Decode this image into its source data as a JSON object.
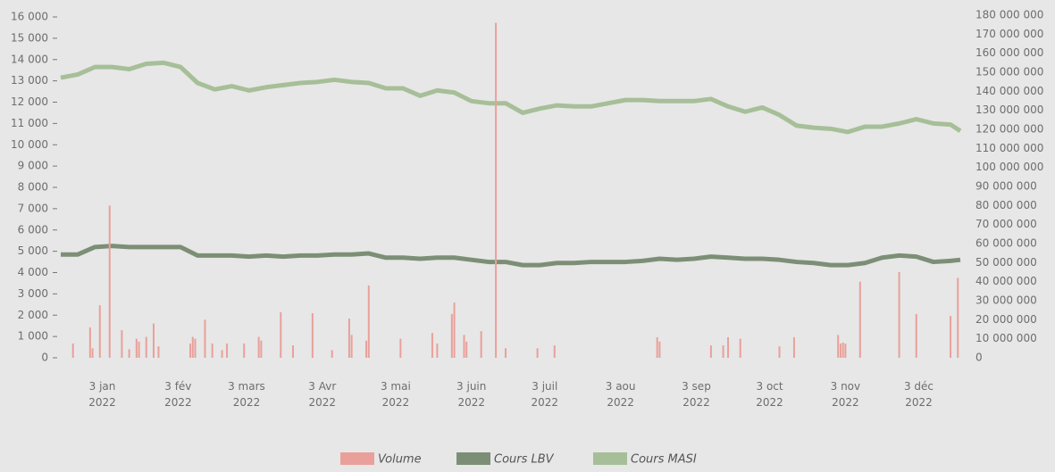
{
  "chart_data": {
    "type": "combo",
    "xlim": [
      "2021-12-17",
      "2022-12-20"
    ],
    "xticks": [
      {
        "value": "2022-01-03",
        "label": "3 jan 2022"
      },
      {
        "value": "2022-02-03",
        "label": "3 fév 2022"
      },
      {
        "value": "2022-03-03",
        "label": "3 mars 2022"
      },
      {
        "value": "2022-04-03",
        "label": "3 Avr 2022"
      },
      {
        "value": "2022-05-03",
        "label": "3 mai 2022"
      },
      {
        "value": "2022-06-03",
        "label": "3 juin 2022"
      },
      {
        "value": "2022-07-03",
        "label": "3 juil 2022"
      },
      {
        "value": "2022-08-03",
        "label": "3 aou 2022"
      },
      {
        "value": "2022-09-03",
        "label": "3 sep 2022"
      },
      {
        "value": "2022-10-03",
        "label": "3 oct 2022"
      },
      {
        "value": "2022-11-03",
        "label": "3 nov 2022"
      },
      {
        "value": "2022-12-03",
        "label": "3 déc 2022"
      }
    ],
    "ylim": [
      0,
      16000
    ],
    "yticks": [
      0,
      {
        "value": 1000,
        "label": "1 000"
      },
      {
        "value": 2000,
        "label": "2 000"
      },
      {
        "value": 3000,
        "label": "3 000"
      },
      {
        "value": 4000,
        "label": "4 000"
      },
      {
        "value": 5000,
        "label": "5 000"
      },
      {
        "value": 6000,
        "label": "6 000"
      },
      {
        "value": 7000,
        "label": "7 000"
      },
      {
        "value": 8000,
        "label": "8 000"
      },
      {
        "value": 9000,
        "label": "9 000"
      },
      {
        "value": 10000,
        "label": "10 000"
      },
      {
        "value": 11000,
        "label": "11 000"
      },
      {
        "value": 12000,
        "label": "12 000"
      },
      {
        "value": 13000,
        "label": "13 000"
      },
      {
        "value": 14000,
        "label": "14 000"
      },
      {
        "value": 15000,
        "label": "15 000"
      },
      {
        "value": 16000,
        "label": "16 000"
      }
    ],
    "y2lim": [
      0,
      180000000
    ],
    "y2ticks": [
      0,
      {
        "value": 10000000,
        "label": "10 000 000"
      },
      {
        "value": 20000000,
        "label": "20 000 000"
      },
      {
        "value": 30000000,
        "label": "30 000 000"
      },
      {
        "value": 40000000,
        "label": "40 000 000"
      },
      {
        "value": 50000000,
        "label": "50 000 000"
      },
      {
        "value": 60000000,
        "label": "60 000 000"
      },
      {
        "value": 70000000,
        "label": "70 000 000"
      },
      {
        "value": 80000000,
        "label": "80 000 000"
      },
      {
        "value": 90000000,
        "label": "90 000 000"
      },
      {
        "value": 100000000,
        "label": "100 000 000"
      },
      {
        "value": 110000000,
        "label": "110 000 000"
      },
      {
        "value": 120000000,
        "label": "120 000 000"
      },
      {
        "value": 130000000,
        "label": "130 000 000"
      },
      {
        "value": 140000000,
        "label": "140 000 000"
      },
      {
        "value": 150000000,
        "label": "150 000 000"
      },
      {
        "value": 160000000,
        "label": "160 000 000"
      },
      {
        "value": 170000000,
        "label": "170 000 000"
      },
      {
        "value": 180000000,
        "label": "180 000 000"
      }
    ],
    "x": [
      "2021-12-17",
      "2021-12-24",
      "2021-12-31",
      "2022-01-07",
      "2022-01-14",
      "2022-01-21",
      "2022-01-28",
      "2022-02-04",
      "2022-02-11",
      "2022-02-18",
      "2022-02-25",
      "2022-03-04",
      "2022-03-11",
      "2022-03-18",
      "2022-03-25",
      "2022-04-01",
      "2022-04-08",
      "2022-04-15",
      "2022-04-22",
      "2022-04-29",
      "2022-05-06",
      "2022-05-13",
      "2022-05-20",
      "2022-05-27",
      "2022-06-03",
      "2022-06-10",
      "2022-06-17",
      "2022-06-24",
      "2022-07-01",
      "2022-07-08",
      "2022-07-15",
      "2022-07-22",
      "2022-07-29",
      "2022-08-05",
      "2022-08-12",
      "2022-08-19",
      "2022-08-26",
      "2022-09-02",
      "2022-09-09",
      "2022-09-16",
      "2022-09-23",
      "2022-09-30",
      "2022-10-07",
      "2022-10-14",
      "2022-10-21",
      "2022-10-28",
      "2022-11-04",
      "2022-11-11",
      "2022-11-18",
      "2022-11-25",
      "2022-12-02",
      "2022-12-09",
      "2022-12-16",
      "2022-12-20"
    ],
    "series": [
      {
        "name": "Volume",
        "type": "bar",
        "axis": "y2",
        "color": "#e9a09a",
        "x": [
          "2021-12-22",
          "2021-12-29",
          "2021-12-30",
          "2022-01-02",
          "2022-01-06",
          "2022-01-11",
          "2022-01-14",
          "2022-01-17",
          "2022-01-18",
          "2022-01-21",
          "2022-01-24",
          "2022-01-26",
          "2022-02-08",
          "2022-02-09",
          "2022-02-10",
          "2022-02-14",
          "2022-02-17",
          "2022-02-21",
          "2022-02-23",
          "2022-03-02",
          "2022-03-08",
          "2022-03-09",
          "2022-03-17",
          "2022-03-22",
          "2022-03-30",
          "2022-04-07",
          "2022-04-14",
          "2022-04-15",
          "2022-04-21",
          "2022-04-22",
          "2022-05-05",
          "2022-05-18",
          "2022-05-20",
          "2022-05-26",
          "2022-05-27",
          "2022-05-31",
          "2022-06-01",
          "2022-06-07",
          "2022-06-13",
          "2022-06-17",
          "2022-06-30",
          "2022-07-07",
          "2022-08-18",
          "2022-08-19",
          "2022-09-09",
          "2022-09-14",
          "2022-09-16",
          "2022-09-21",
          "2022-10-07",
          "2022-10-13",
          "2022-10-31",
          "2022-11-01",
          "2022-11-02",
          "2022-11-03",
          "2022-11-09",
          "2022-11-25",
          "2022-12-02",
          "2022-12-16",
          "2022-12-19"
        ],
        "values": [
          7500000,
          16000000,
          5000000,
          27600000,
          80000000,
          14500000,
          4500000,
          10000000,
          8500000,
          11000000,
          18000000,
          6000000,
          7500000,
          11000000,
          10000000,
          20000000,
          7500000,
          4000000,
          7500000,
          7500000,
          11000000,
          9000000,
          24000000,
          6500000,
          23400000,
          4000000,
          20600000,
          12000000,
          9000000,
          38000000,
          10000000,
          13000000,
          7500000,
          23000000,
          29000000,
          12000000,
          8500000,
          14000000,
          176000000,
          5000000,
          5000000,
          6500000,
          10800000,
          8500000,
          6500000,
          6500000,
          10800000,
          10000000,
          6000000,
          10800000,
          12000000,
          7500000,
          8000000,
          7500000,
          40000000,
          45000000,
          23000000,
          22000000,
          42000000
        ]
      },
      {
        "name": "Cours LBV",
        "type": "line",
        "color": "#7c8f76",
        "values": [
          4850,
          4850,
          5200,
          5250,
          5200,
          5200,
          5200,
          5200,
          4800,
          4800,
          4800,
          4750,
          4800,
          4750,
          4800,
          4800,
          4850,
          4850,
          4900,
          4700,
          4700,
          4650,
          4700,
          4700,
          4600,
          4500,
          4500,
          4350,
          4350,
          4450,
          4450,
          4500,
          4500,
          4500,
          4550,
          4650,
          4600,
          4650,
          4750,
          4700,
          4650,
          4650,
          4600,
          4500,
          4450,
          4350,
          4350,
          4450,
          4700,
          4800,
          4750,
          4500,
          4550,
          4600
        ]
      },
      {
        "name": "Cours MASI",
        "type": "line",
        "color": "#a6bf98",
        "values": [
          13150,
          13300,
          13650,
          13650,
          13550,
          13800,
          13850,
          13650,
          12900,
          12600,
          12750,
          12550,
          12700,
          12800,
          12900,
          12950,
          13050,
          12950,
          12900,
          12650,
          12650,
          12300,
          12550,
          12450,
          12050,
          11950,
          11950,
          11500,
          11700,
          11850,
          11800,
          11800,
          11950,
          12100,
          12100,
          12050,
          12050,
          12050,
          12150,
          11800,
          11550,
          11750,
          11400,
          10900,
          10800,
          10750,
          10600,
          10850,
          10850,
          11000,
          11200,
          11000,
          10950,
          10650
        ]
      }
    ]
  }
}
